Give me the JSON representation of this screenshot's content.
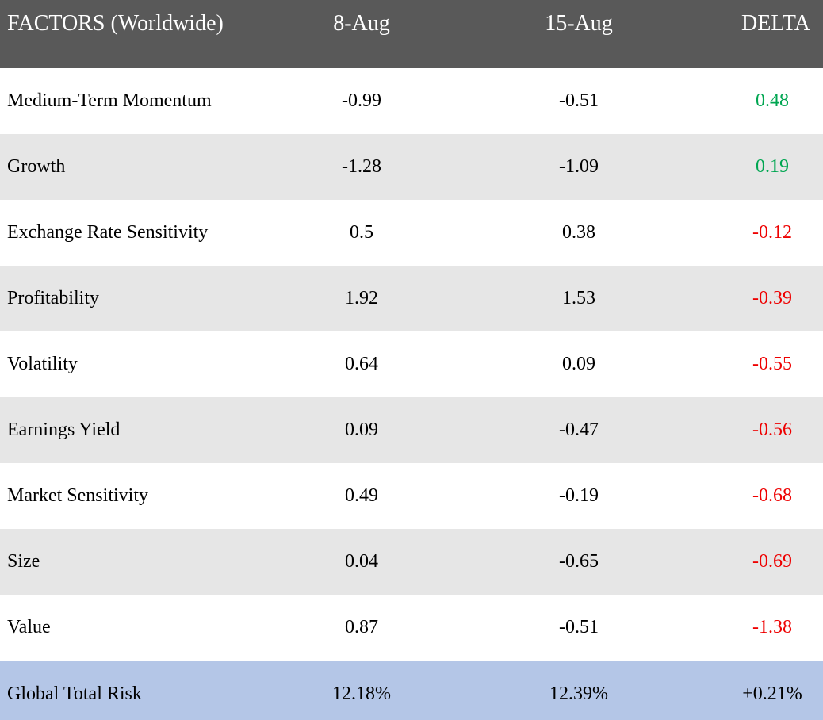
{
  "chart_data": {
    "type": "table",
    "columns": [
      "FACTORS (Worldwide)",
      "8-Aug",
      "15-Aug",
      "DELTA"
    ],
    "rows": [
      {
        "factor": "Medium-Term Momentum",
        "aug8": "-0.99",
        "aug15": "-0.51",
        "delta": "0.48",
        "sign": "pos"
      },
      {
        "factor": "Growth",
        "aug8": "-1.28",
        "aug15": "-1.09",
        "delta": "0.19",
        "sign": "pos"
      },
      {
        "factor": "Exchange Rate Sensitivity",
        "aug8": "0.5",
        "aug15": "0.38",
        "delta": "-0.12",
        "sign": "neg"
      },
      {
        "factor": "Profitability",
        "aug8": "1.92",
        "aug15": "1.53",
        "delta": "-0.39",
        "sign": "neg"
      },
      {
        "factor": "Volatility",
        "aug8": "0.64",
        "aug15": "0.09",
        "delta": "-0.55",
        "sign": "neg"
      },
      {
        "factor": "Earnings Yield",
        "aug8": "0.09",
        "aug15": "-0.47",
        "delta": "-0.56",
        "sign": "neg"
      },
      {
        "factor": "Market Sensitivity",
        "aug8": "0.49",
        "aug15": "-0.19",
        "delta": "-0.68",
        "sign": "neg"
      },
      {
        "factor": "Size",
        "aug8": "0.04",
        "aug15": "-0.65",
        "delta": "-0.69",
        "sign": "neg"
      },
      {
        "factor": "Value",
        "aug8": "0.87",
        "aug15": "-0.51",
        "delta": "-1.38",
        "sign": "neg"
      }
    ],
    "total": {
      "factor": "Global Total Risk",
      "aug8": "12.18%",
      "aug15": "12.39%",
      "delta": "+0.21%"
    },
    "colors": {
      "header_bg": "#595959",
      "alt_row_bg": "#e6e6e6",
      "total_bg": "#b4c6e7",
      "positive": "#00a651",
      "negative": "#ee0000"
    }
  }
}
